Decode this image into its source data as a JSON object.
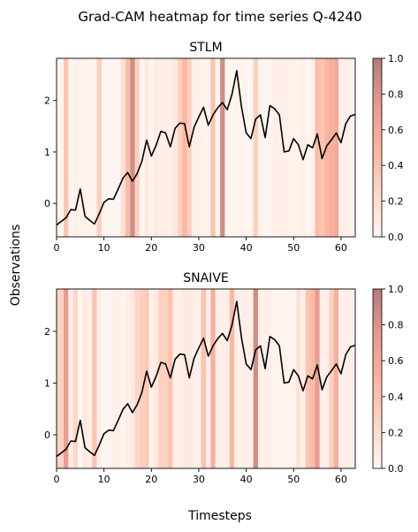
{
  "suptitle": "Grad-CAM heatmap for time series Q-4240",
  "xlabel": "Timesteps",
  "ylabel": "Observations",
  "colormap": {
    "low": "#fff5f0",
    "mid": "#fcae91",
    "high": "#b07b7b"
  },
  "line_color": "#000000",
  "chart_data": [
    {
      "type": "line",
      "subtype": "heatmap-overlay",
      "title": "STLM",
      "xlim": [
        0,
        63
      ],
      "ylim": [
        -0.65,
        2.82
      ],
      "xticks": [
        0,
        10,
        20,
        30,
        40,
        50,
        60
      ],
      "yticks": [
        0,
        1,
        2
      ],
      "colorbar": {
        "range": [
          0,
          1
        ],
        "ticks": [
          "0.0",
          "0.2",
          "0.4",
          "0.6",
          "0.8",
          "1.0"
        ]
      },
      "series": [
        {
          "values": [
            -0.42,
            -0.35,
            -0.28,
            -0.12,
            -0.13,
            0.28,
            -0.25,
            -0.33,
            -0.4,
            -0.2,
            0.02,
            0.09,
            0.08,
            0.28,
            0.49,
            0.6,
            0.43,
            0.58,
            0.82,
            1.23,
            0.92,
            1.13,
            1.4,
            1.37,
            1.1,
            1.46,
            1.56,
            1.55,
            1.1,
            1.48,
            1.68,
            1.87,
            1.52,
            1.72,
            1.86,
            1.96,
            1.82,
            2.12,
            2.58,
            1.88,
            1.37,
            1.26,
            1.64,
            1.72,
            1.28,
            1.9,
            1.84,
            1.72,
            1.0,
            1.02,
            1.26,
            1.14,
            0.85,
            1.14,
            1.08,
            1.35,
            0.87,
            1.12,
            1.24,
            1.37,
            1.18,
            1.55,
            1.7,
            1.73
          ]
        }
      ],
      "heat": [
        0.0,
        0.0,
        0.38,
        0.0,
        0.05,
        0.03,
        0.03,
        0.02,
        0.02,
        0.3,
        0.0,
        0.0,
        0.0,
        0.0,
        0.15,
        0.45,
        0.85,
        0.3,
        0.0,
        0.1,
        0.0,
        0.08,
        0.06,
        0.05,
        0.05,
        0.1,
        0.28,
        0.48,
        0.3,
        0.05,
        0.05,
        0.02,
        0.02,
        0.4,
        0.0,
        0.85,
        0.0,
        0.0,
        0.02,
        0.02,
        0.02,
        0.0,
        0.3,
        0.02,
        0.02,
        0.0,
        0.05,
        0.05,
        0.05,
        0.04,
        0.04,
        0.02,
        0.05,
        0.0,
        0.03,
        0.45,
        0.38,
        0.5,
        0.55,
        0.6,
        0.05,
        0.05,
        0.03,
        0.05
      ]
    },
    {
      "type": "line",
      "subtype": "heatmap-overlay",
      "title": "SNAIVE",
      "xlim": [
        0,
        63
      ],
      "ylim": [
        -0.65,
        2.82
      ],
      "xticks": [
        0,
        10,
        20,
        30,
        40,
        50,
        60
      ],
      "yticks": [
        0,
        1,
        2
      ],
      "colorbar": {
        "range": [
          0,
          1
        ],
        "ticks": [
          "0.0",
          "0.2",
          "0.4",
          "0.6",
          "0.8",
          "1.0"
        ]
      },
      "series": [
        {
          "values": [
            -0.42,
            -0.35,
            -0.28,
            -0.12,
            -0.13,
            0.28,
            -0.25,
            -0.33,
            -0.4,
            -0.2,
            0.02,
            0.09,
            0.08,
            0.28,
            0.49,
            0.6,
            0.43,
            0.58,
            0.82,
            1.23,
            0.92,
            1.13,
            1.4,
            1.37,
            1.1,
            1.46,
            1.56,
            1.55,
            1.1,
            1.48,
            1.68,
            1.87,
            1.52,
            1.72,
            1.86,
            1.96,
            1.82,
            2.12,
            2.58,
            1.88,
            1.37,
            1.26,
            1.64,
            1.72,
            1.28,
            1.9,
            1.84,
            1.72,
            1.0,
            1.02,
            1.26,
            1.14,
            0.85,
            1.14,
            1.08,
            1.35,
            0.87,
            1.12,
            1.24,
            1.37,
            1.18,
            1.55,
            1.7,
            1.73
          ]
        }
      ],
      "heat": [
        0.3,
        0.28,
        0.72,
        0.05,
        0.25,
        0.0,
        0.1,
        0.05,
        0.38,
        0.05,
        0.0,
        0.0,
        0.05,
        0.05,
        0.02,
        0.05,
        0.1,
        0.25,
        0.3,
        0.35,
        0.05,
        0.1,
        0.3,
        0.3,
        0.4,
        0.05,
        0.05,
        0.1,
        0.1,
        0.05,
        0.05,
        0.4,
        0.05,
        0.55,
        0.05,
        0.05,
        0.05,
        0.48,
        0.05,
        0.05,
        0.05,
        0.05,
        0.85,
        0.05,
        0.05,
        0.05,
        0.02,
        0.02,
        0.02,
        0.02,
        0.02,
        0.15,
        0.05,
        0.38,
        0.45,
        0.72,
        0.05,
        0.05,
        0.3,
        0.55,
        0.05,
        0.05,
        0.05,
        0.05
      ]
    }
  ]
}
